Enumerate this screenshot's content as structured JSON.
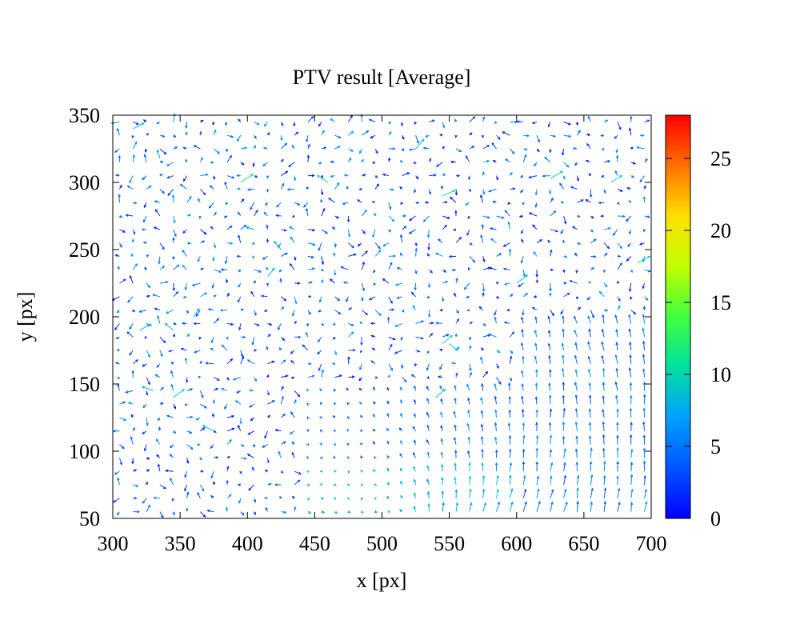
{
  "chart_data": {
    "type": "vector-field",
    "title": "PTV result [Average]",
    "xlabel": "x [px]",
    "ylabel": "y [px]",
    "xlim": [
      300,
      700
    ],
    "ylim": [
      50,
      350
    ],
    "x_ticks": [
      300,
      350,
      400,
      450,
      500,
      550,
      600,
      650,
      700
    ],
    "y_ticks": [
      50,
      100,
      150,
      200,
      250,
      300,
      350
    ],
    "grid": false,
    "legend": "none",
    "colorbar": {
      "range": [
        0,
        28
      ],
      "ticks": [
        0,
        5,
        10,
        15,
        20,
        25
      ],
      "colormap": "jet"
    },
    "grid_spacing_px": 10,
    "vectors": [
      {
        "x": 315,
        "y": 340,
        "u": 8,
        "v": 4,
        "magnitude": 9
      },
      {
        "x": 335,
        "y": 318,
        "u": -2,
        "v": 6,
        "magnitude": 7
      },
      {
        "x": 395,
        "y": 300,
        "u": 9,
        "v": 6,
        "magnitude": 11
      },
      {
        "x": 460,
        "y": 300,
        "u": -8,
        "v": 5,
        "magnitude": 10
      },
      {
        "x": 525,
        "y": 325,
        "u": 6,
        "v": 7,
        "magnitude": 9
      },
      {
        "x": 545,
        "y": 290,
        "u": 9,
        "v": 4,
        "magnitude": 11
      },
      {
        "x": 625,
        "y": 303,
        "u": 9,
        "v": 5,
        "magnitude": 10
      },
      {
        "x": 670,
        "y": 300,
        "u": 8,
        "v": 5,
        "magnitude": 10
      },
      {
        "x": 690,
        "y": 240,
        "u": 9,
        "v": 5,
        "magnitude": 10
      },
      {
        "x": 320,
        "y": 190,
        "u": 7,
        "v": 4,
        "magnitude": 8
      },
      {
        "x": 345,
        "y": 190,
        "u": -6,
        "v": 5,
        "magnitude": 8
      },
      {
        "x": 360,
        "y": 200,
        "u": 4,
        "v": 6,
        "magnitude": 8
      },
      {
        "x": 415,
        "y": 230,
        "u": 5,
        "v": 6,
        "magnitude": 8
      },
      {
        "x": 425,
        "y": 250,
        "u": -5,
        "v": 6,
        "magnitude": 8
      },
      {
        "x": 545,
        "y": 180,
        "u": 7,
        "v": 6,
        "magnitude": 10
      },
      {
        "x": 550,
        "y": 180,
        "u": 6,
        "v": -5,
        "magnitude": 9
      },
      {
        "x": 600,
        "y": 225,
        "u": 8,
        "v": 6,
        "magnitude": 10
      },
      {
        "x": 345,
        "y": 140,
        "u": 8,
        "v": 6,
        "magnitude": 10
      },
      {
        "x": 330,
        "y": 145,
        "u": -8,
        "v": 3,
        "magnitude": 8
      },
      {
        "x": 375,
        "y": 115,
        "u": -8,
        "v": 4,
        "magnitude": 9
      },
      {
        "x": 540,
        "y": 140,
        "u": 7,
        "v": 6,
        "magnitude": 9
      }
    ]
  }
}
